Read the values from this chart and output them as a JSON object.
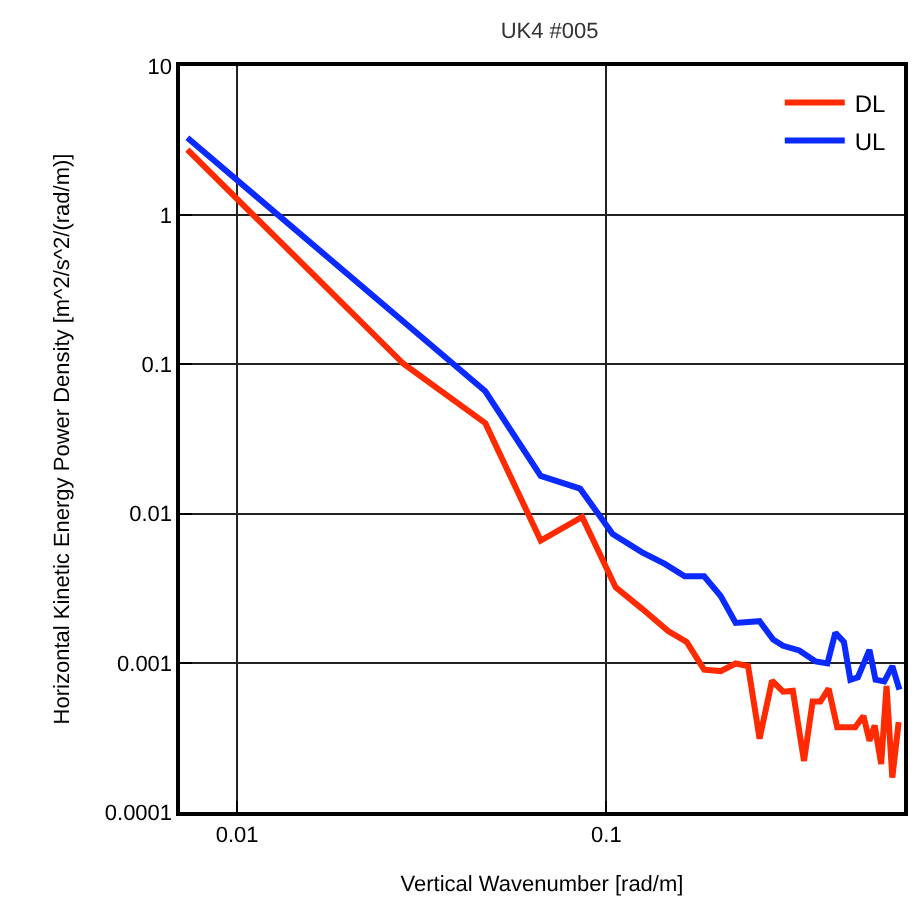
{
  "chart_data": {
    "type": "line",
    "title": "UK4 #005",
    "xlabel": "Vertical Wavenumber [rad/m]",
    "ylabel": "Horizontal Kinetic Energy Power Density [m^2/s^2/(rad/m)]",
    "log": "xy",
    "grid": true,
    "legend": "top right",
    "marker": "none",
    "line_style": "solid",
    "xlim": [
      0.007,
      0.64
    ],
    "ylim": [
      0.0001,
      10
    ],
    "xticks": [
      0.01,
      0.1
    ],
    "yticks": [
      0.0001,
      0.001,
      0.01,
      0.1,
      1,
      10
    ],
    "series": [
      {
        "name": "DL",
        "color": "#ff2a00",
        "x": [
          0.00733,
          0.0282,
          0.047,
          0.0664,
          0.086,
          0.106,
          0.125,
          0.147,
          0.165,
          0.184,
          0.204,
          0.224,
          0.242,
          0.26,
          0.281,
          0.301,
          0.32,
          0.343,
          0.362,
          0.38,
          0.4,
          0.422,
          0.472,
          0.497,
          0.516,
          0.533,
          0.555,
          0.574,
          0.595,
          0.619
        ],
        "values": [
          2.75,
          0.101,
          0.0404,
          0.0066,
          0.0095,
          0.0032,
          0.0023,
          0.00163,
          0.00138,
          0.0009,
          0.00088,
          0.00099,
          0.00095,
          0.00031,
          0.00076,
          0.00064,
          0.00065,
          0.00022,
          0.00055,
          0.00055,
          0.00067,
          0.00037,
          0.00037,
          0.00044,
          0.0003,
          0.00038,
          0.00021,
          0.0007,
          0.00017,
          0.0004
        ]
      },
      {
        "name": "UL",
        "color": "#0a2aff",
        "x": [
          0.00733,
          0.047,
          0.0664,
          0.0849,
          0.104,
          0.125,
          0.144,
          0.163,
          0.184,
          0.204,
          0.224,
          0.26,
          0.283,
          0.301,
          0.333,
          0.369,
          0.397,
          0.417,
          0.44,
          0.458,
          0.48,
          0.516,
          0.536,
          0.566,
          0.595,
          0.622
        ],
        "values": [
          3.3,
          0.066,
          0.0179,
          0.0147,
          0.0073,
          0.0055,
          0.0046,
          0.0038,
          0.0038,
          0.0028,
          0.00185,
          0.0019,
          0.00143,
          0.0013,
          0.00121,
          0.00102,
          0.00099,
          0.00159,
          0.00138,
          0.00077,
          0.0008,
          0.00122,
          0.00077,
          0.00075,
          0.00095,
          0.00066
        ]
      }
    ]
  }
}
